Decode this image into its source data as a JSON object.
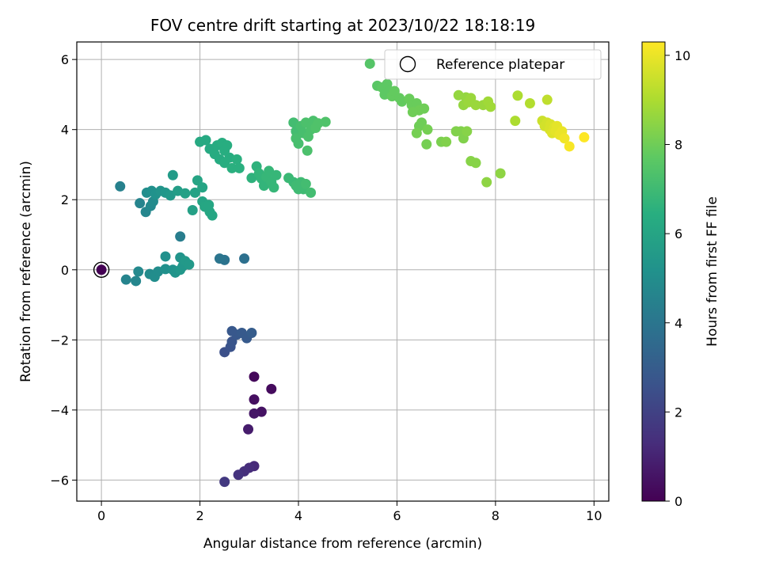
{
  "chart_data": {
    "type": "scatter",
    "title": "FOV centre drift starting at 2023/10/22 18:18:19",
    "xlabel": "Angular distance from reference (arcmin)",
    "ylabel": "Rotation from reference (arcmin)",
    "xlim": [
      -0.5,
      10.3
    ],
    "ylim": [
      -6.6,
      6.5
    ],
    "x_ticks": [
      0,
      2,
      4,
      6,
      8,
      10
    ],
    "y_ticks": [
      -6,
      -4,
      -2,
      0,
      2,
      4,
      6
    ],
    "x_tick_labels": [
      "0",
      "2",
      "4",
      "6",
      "8",
      "10"
    ],
    "y_tick_labels": [
      "−6",
      "−4",
      "−2",
      "0",
      "2",
      "4",
      "6"
    ],
    "grid": true,
    "legend": {
      "placement": "top-right",
      "entries": [
        {
          "label": "Reference platepar",
          "marker": "open-circle"
        }
      ]
    },
    "colorbar": {
      "label": "Hours from first FF file",
      "range": [
        0,
        10.3
      ],
      "ticks": [
        0,
        2,
        4,
        6,
        8,
        10
      ],
      "tick_labels": [
        "0",
        "2",
        "4",
        "6",
        "8",
        "10"
      ],
      "colormap": "viridis"
    },
    "reference_point": {
      "x": 0,
      "y": 0
    },
    "points": [
      {
        "x": 0.0,
        "y": 0.0,
        "t": 0.0
      },
      {
        "x": 3.1,
        "y": -3.05,
        "t": 0.2
      },
      {
        "x": 3.45,
        "y": -3.4,
        "t": 0.3
      },
      {
        "x": 3.1,
        "y": -3.7,
        "t": 0.4
      },
      {
        "x": 3.25,
        "y": -4.05,
        "t": 0.5
      },
      {
        "x": 3.1,
        "y": -4.1,
        "t": 0.6
      },
      {
        "x": 2.98,
        "y": -4.55,
        "t": 0.8
      },
      {
        "x": 3.1,
        "y": -5.6,
        "t": 1.2
      },
      {
        "x": 3.0,
        "y": -5.65,
        "t": 1.3
      },
      {
        "x": 2.9,
        "y": -5.75,
        "t": 1.4
      },
      {
        "x": 2.78,
        "y": -5.85,
        "t": 1.5
      },
      {
        "x": 2.5,
        "y": -6.05,
        "t": 1.7
      },
      {
        "x": 2.5,
        "y": -2.35,
        "t": 2.5
      },
      {
        "x": 2.62,
        "y": -2.2,
        "t": 2.6
      },
      {
        "x": 2.65,
        "y": -2.05,
        "t": 2.7
      },
      {
        "x": 2.75,
        "y": -1.85,
        "t": 2.8
      },
      {
        "x": 2.65,
        "y": -1.75,
        "t": 2.8
      },
      {
        "x": 2.85,
        "y": -1.8,
        "t": 2.9
      },
      {
        "x": 2.95,
        "y": -1.95,
        "t": 2.9
      },
      {
        "x": 3.05,
        "y": -1.8,
        "t": 3.0
      },
      {
        "x": 2.9,
        "y": 0.32,
        "t": 3.8
      },
      {
        "x": 2.5,
        "y": 0.28,
        "t": 3.9
      },
      {
        "x": 2.4,
        "y": 0.32,
        "t": 4.0
      },
      {
        "x": 1.6,
        "y": 0.95,
        "t": 4.3
      },
      {
        "x": 0.5,
        "y": -0.28,
        "t": 4.6
      },
      {
        "x": 0.7,
        "y": -0.32,
        "t": 4.7
      },
      {
        "x": 0.75,
        "y": -0.05,
        "t": 4.8
      },
      {
        "x": 0.98,
        "y": -0.12,
        "t": 4.9
      },
      {
        "x": 1.08,
        "y": -0.2,
        "t": 5.0
      },
      {
        "x": 1.15,
        "y": -0.05,
        "t": 5.0
      },
      {
        "x": 1.3,
        "y": 0.38,
        "t": 5.1
      },
      {
        "x": 1.3,
        "y": 0.02,
        "t": 5.1
      },
      {
        "x": 1.45,
        "y": 0.0,
        "t": 5.2
      },
      {
        "x": 1.5,
        "y": -0.08,
        "t": 5.3
      },
      {
        "x": 1.6,
        "y": 0.35,
        "t": 5.3
      },
      {
        "x": 1.65,
        "y": 0.1,
        "t": 5.4
      },
      {
        "x": 1.7,
        "y": 0.25,
        "t": 5.5
      },
      {
        "x": 1.78,
        "y": 0.15,
        "t": 5.5
      },
      {
        "x": 1.6,
        "y": 0.0,
        "t": 5.4
      },
      {
        "x": 0.38,
        "y": 2.38,
        "t": 4.5
      },
      {
        "x": 0.78,
        "y": 1.9,
        "t": 4.6
      },
      {
        "x": 0.9,
        "y": 1.65,
        "t": 4.7
      },
      {
        "x": 1.0,
        "y": 1.82,
        "t": 4.8
      },
      {
        "x": 1.05,
        "y": 1.95,
        "t": 4.9
      },
      {
        "x": 0.92,
        "y": 2.2,
        "t": 5.0
      },
      {
        "x": 1.02,
        "y": 2.25,
        "t": 5.1
      },
      {
        "x": 1.1,
        "y": 2.15,
        "t": 5.2
      },
      {
        "x": 1.2,
        "y": 2.25,
        "t": 5.3
      },
      {
        "x": 1.3,
        "y": 2.2,
        "t": 5.4
      },
      {
        "x": 1.4,
        "y": 2.12,
        "t": 5.5
      },
      {
        "x": 1.45,
        "y": 2.7,
        "t": 5.6
      },
      {
        "x": 1.55,
        "y": 2.25,
        "t": 5.7
      },
      {
        "x": 1.7,
        "y": 2.18,
        "t": 5.8
      },
      {
        "x": 1.85,
        "y": 1.7,
        "t": 5.8
      },
      {
        "x": 1.9,
        "y": 2.2,
        "t": 5.9
      },
      {
        "x": 1.95,
        "y": 2.55,
        "t": 6.0
      },
      {
        "x": 2.05,
        "y": 2.35,
        "t": 6.0
      },
      {
        "x": 2.05,
        "y": 1.95,
        "t": 6.0
      },
      {
        "x": 2.1,
        "y": 1.8,
        "t": 6.1
      },
      {
        "x": 2.2,
        "y": 1.65,
        "t": 6.1
      },
      {
        "x": 2.25,
        "y": 1.55,
        "t": 6.1
      },
      {
        "x": 2.18,
        "y": 1.85,
        "t": 6.1
      },
      {
        "x": 2.0,
        "y": 3.65,
        "t": 6.2
      },
      {
        "x": 2.12,
        "y": 3.7,
        "t": 6.2
      },
      {
        "x": 2.2,
        "y": 3.45,
        "t": 6.2
      },
      {
        "x": 2.3,
        "y": 3.3,
        "t": 6.3
      },
      {
        "x": 2.35,
        "y": 3.55,
        "t": 6.3
      },
      {
        "x": 2.4,
        "y": 3.15,
        "t": 6.3
      },
      {
        "x": 2.45,
        "y": 3.62,
        "t": 6.4
      },
      {
        "x": 2.5,
        "y": 3.4,
        "t": 6.4
      },
      {
        "x": 2.55,
        "y": 3.55,
        "t": 6.4
      },
      {
        "x": 2.5,
        "y": 3.05,
        "t": 6.4
      },
      {
        "x": 2.6,
        "y": 3.2,
        "t": 6.4
      },
      {
        "x": 2.65,
        "y": 2.9,
        "t": 6.5
      },
      {
        "x": 2.75,
        "y": 3.15,
        "t": 6.5
      },
      {
        "x": 2.8,
        "y": 2.9,
        "t": 6.5
      },
      {
        "x": 3.05,
        "y": 2.62,
        "t": 6.6
      },
      {
        "x": 3.15,
        "y": 2.95,
        "t": 6.6
      },
      {
        "x": 3.2,
        "y": 2.75,
        "t": 6.7
      },
      {
        "x": 3.25,
        "y": 2.6,
        "t": 6.7
      },
      {
        "x": 3.3,
        "y": 2.4,
        "t": 6.7
      },
      {
        "x": 3.35,
        "y": 2.65,
        "t": 6.8
      },
      {
        "x": 3.4,
        "y": 2.82,
        "t": 6.8
      },
      {
        "x": 3.45,
        "y": 2.5,
        "t": 6.8
      },
      {
        "x": 3.5,
        "y": 2.35,
        "t": 6.8
      },
      {
        "x": 3.55,
        "y": 2.7,
        "t": 6.8
      },
      {
        "x": 3.8,
        "y": 2.62,
        "t": 6.9
      },
      {
        "x": 3.9,
        "y": 2.5,
        "t": 6.9
      },
      {
        "x": 3.95,
        "y": 2.4,
        "t": 7.0
      },
      {
        "x": 4.0,
        "y": 2.3,
        "t": 7.0
      },
      {
        "x": 4.05,
        "y": 2.5,
        "t": 7.0
      },
      {
        "x": 4.1,
        "y": 2.3,
        "t": 7.0
      },
      {
        "x": 4.15,
        "y": 2.45,
        "t": 7.1
      },
      {
        "x": 4.25,
        "y": 2.2,
        "t": 7.1
      },
      {
        "x": 3.9,
        "y": 4.2,
        "t": 7.1
      },
      {
        "x": 3.95,
        "y": 3.95,
        "t": 7.1
      },
      {
        "x": 3.95,
        "y": 3.75,
        "t": 7.2
      },
      {
        "x": 4.0,
        "y": 3.6,
        "t": 7.2
      },
      {
        "x": 4.05,
        "y": 4.1,
        "t": 7.2
      },
      {
        "x": 4.1,
        "y": 3.9,
        "t": 7.2
      },
      {
        "x": 4.15,
        "y": 4.2,
        "t": 7.3
      },
      {
        "x": 4.2,
        "y": 3.8,
        "t": 7.3
      },
      {
        "x": 4.18,
        "y": 3.4,
        "t": 7.3
      },
      {
        "x": 4.25,
        "y": 4.0,
        "t": 7.3
      },
      {
        "x": 4.3,
        "y": 4.25,
        "t": 7.3
      },
      {
        "x": 4.35,
        "y": 4.05,
        "t": 7.4
      },
      {
        "x": 4.4,
        "y": 4.18,
        "t": 7.4
      },
      {
        "x": 4.55,
        "y": 4.22,
        "t": 7.4
      },
      {
        "x": 5.45,
        "y": 5.88,
        "t": 7.5
      },
      {
        "x": 5.6,
        "y": 5.25,
        "t": 7.6
      },
      {
        "x": 5.7,
        "y": 5.2,
        "t": 7.7
      },
      {
        "x": 5.75,
        "y": 5.0,
        "t": 7.7
      },
      {
        "x": 5.8,
        "y": 5.3,
        "t": 7.7
      },
      {
        "x": 5.85,
        "y": 5.1,
        "t": 7.7
      },
      {
        "x": 5.9,
        "y": 4.95,
        "t": 7.8
      },
      {
        "x": 5.95,
        "y": 5.1,
        "t": 7.8
      },
      {
        "x": 6.05,
        "y": 4.9,
        "t": 7.8
      },
      {
        "x": 6.1,
        "y": 4.8,
        "t": 7.8
      },
      {
        "x": 6.25,
        "y": 4.88,
        "t": 7.9
      },
      {
        "x": 6.3,
        "y": 4.7,
        "t": 7.9
      },
      {
        "x": 6.4,
        "y": 4.75,
        "t": 7.9
      },
      {
        "x": 6.45,
        "y": 4.55,
        "t": 8.0
      },
      {
        "x": 6.32,
        "y": 4.5,
        "t": 8.0
      },
      {
        "x": 6.55,
        "y": 4.6,
        "t": 8.0
      },
      {
        "x": 6.5,
        "y": 4.2,
        "t": 8.0
      },
      {
        "x": 6.45,
        "y": 4.1,
        "t": 8.0
      },
      {
        "x": 6.4,
        "y": 3.9,
        "t": 8.1
      },
      {
        "x": 6.62,
        "y": 4.0,
        "t": 8.1
      },
      {
        "x": 6.6,
        "y": 3.58,
        "t": 8.1
      },
      {
        "x": 6.9,
        "y": 3.65,
        "t": 8.2
      },
      {
        "x": 7.0,
        "y": 3.65,
        "t": 8.3
      },
      {
        "x": 7.2,
        "y": 3.95,
        "t": 8.3
      },
      {
        "x": 7.3,
        "y": 3.95,
        "t": 8.3
      },
      {
        "x": 7.35,
        "y": 3.75,
        "t": 8.3
      },
      {
        "x": 7.42,
        "y": 3.95,
        "t": 8.4
      },
      {
        "x": 7.5,
        "y": 3.1,
        "t": 8.4
      },
      {
        "x": 7.6,
        "y": 3.05,
        "t": 8.4
      },
      {
        "x": 7.82,
        "y": 2.5,
        "t": 8.5
      },
      {
        "x": 8.1,
        "y": 2.75,
        "t": 8.5
      },
      {
        "x": 7.25,
        "y": 4.98,
        "t": 8.6
      },
      {
        "x": 7.35,
        "y": 4.7,
        "t": 8.6
      },
      {
        "x": 7.4,
        "y": 4.92,
        "t": 8.6
      },
      {
        "x": 7.45,
        "y": 4.78,
        "t": 8.7
      },
      {
        "x": 7.5,
        "y": 4.9,
        "t": 8.7
      },
      {
        "x": 7.6,
        "y": 4.7,
        "t": 8.7
      },
      {
        "x": 7.75,
        "y": 4.7,
        "t": 8.7
      },
      {
        "x": 7.85,
        "y": 4.8,
        "t": 8.8
      },
      {
        "x": 7.9,
        "y": 4.65,
        "t": 8.8
      },
      {
        "x": 8.4,
        "y": 4.25,
        "t": 9.0
      },
      {
        "x": 8.45,
        "y": 4.97,
        "t": 9.0
      },
      {
        "x": 8.7,
        "y": 4.75,
        "t": 9.1
      },
      {
        "x": 9.05,
        "y": 4.85,
        "t": 9.3
      },
      {
        "x": 8.95,
        "y": 4.25,
        "t": 9.5
      },
      {
        "x": 9.0,
        "y": 4.1,
        "t": 9.6
      },
      {
        "x": 9.05,
        "y": 4.2,
        "t": 9.6
      },
      {
        "x": 9.1,
        "y": 4.0,
        "t": 9.7
      },
      {
        "x": 9.12,
        "y": 4.15,
        "t": 9.7
      },
      {
        "x": 9.15,
        "y": 3.9,
        "t": 9.8
      },
      {
        "x": 9.2,
        "y": 4.08,
        "t": 9.8
      },
      {
        "x": 9.22,
        "y": 3.95,
        "t": 9.9
      },
      {
        "x": 9.25,
        "y": 4.1,
        "t": 9.9
      },
      {
        "x": 9.3,
        "y": 3.85,
        "t": 10.0
      },
      {
        "x": 9.35,
        "y": 3.95,
        "t": 10.0
      },
      {
        "x": 9.4,
        "y": 3.75,
        "t": 10.1
      },
      {
        "x": 9.5,
        "y": 3.52,
        "t": 10.2
      },
      {
        "x": 9.8,
        "y": 3.78,
        "t": 10.3
      }
    ]
  }
}
